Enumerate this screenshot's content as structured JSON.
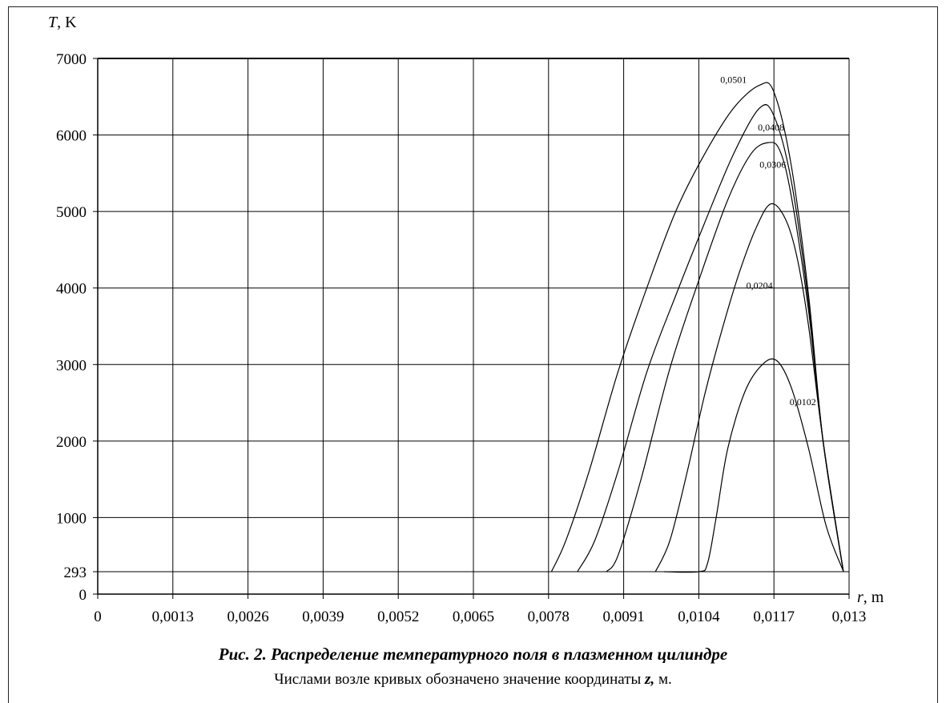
{
  "chart_data": {
    "type": "line",
    "y_axis_label": "T",
    "y_axis_unit": ", K",
    "x_axis_label": "r",
    "x_axis_unit": ", m",
    "xlim": [
      0,
      0.013
    ],
    "ylim": [
      0,
      7000
    ],
    "x_ticks": [
      "0",
      "0,0013",
      "0,0026",
      "0,0039",
      "0,0052",
      "0,0065",
      "0,0078",
      "0,0091",
      "0,0104",
      "0,0117",
      "0,013"
    ],
    "y_ticks": [
      "0",
      "293",
      "1000",
      "2000",
      "3000",
      "4000",
      "5000",
      "6000",
      "7000"
    ],
    "x_tick_values": [
      0,
      0.0013,
      0.0026,
      0.0039,
      0.0052,
      0.0065,
      0.0078,
      0.0091,
      0.0104,
      0.0117,
      0.013
    ],
    "y_tick_values": [
      0,
      293,
      1000,
      2000,
      3000,
      4000,
      5000,
      6000,
      7000
    ],
    "grid": true,
    "baseline": 293,
    "series": [
      {
        "name": "0,0501",
        "label_value": [
          0.011,
          6680
        ],
        "points": [
          [
            0.00785,
            293
          ],
          [
            0.0081,
            700
          ],
          [
            0.0085,
            1600
          ],
          [
            0.009,
            2900
          ],
          [
            0.0095,
            4000
          ],
          [
            0.01,
            5000
          ],
          [
            0.0105,
            5750
          ],
          [
            0.011,
            6350
          ],
          [
            0.01145,
            6650
          ],
          [
            0.0117,
            6560
          ],
          [
            0.012,
            5600
          ],
          [
            0.0123,
            3900
          ],
          [
            0.01255,
            2000
          ],
          [
            0.0129,
            300
          ]
        ]
      },
      {
        "name": "0,0408",
        "label_value": [
          0.01165,
          6060
        ],
        "points": [
          [
            0.0083,
            293
          ],
          [
            0.0086,
            700
          ],
          [
            0.009,
            1600
          ],
          [
            0.0095,
            2900
          ],
          [
            0.01,
            3900
          ],
          [
            0.0105,
            4850
          ],
          [
            0.011,
            5750
          ],
          [
            0.01145,
            6350
          ],
          [
            0.0117,
            6250
          ],
          [
            0.012,
            5400
          ],
          [
            0.0123,
            3800
          ],
          [
            0.01255,
            2000
          ],
          [
            0.0129,
            300
          ]
        ]
      },
      {
        "name": "0,0306",
        "label_value": [
          0.01168,
          5570
        ],
        "points": [
          [
            0.0088,
            293
          ],
          [
            0.009,
            500
          ],
          [
            0.0094,
            1500
          ],
          [
            0.0099,
            2950
          ],
          [
            0.0104,
            4100
          ],
          [
            0.0109,
            5150
          ],
          [
            0.0113,
            5750
          ],
          [
            0.0116,
            5900
          ],
          [
            0.0118,
            5800
          ],
          [
            0.012,
            5200
          ],
          [
            0.0123,
            3700
          ],
          [
            0.01255,
            2000
          ],
          [
            0.0129,
            300
          ]
        ]
      },
      {
        "name": "0,0204",
        "label_value": [
          0.01145,
          3990
        ],
        "points": [
          [
            0.00965,
            293
          ],
          [
            0.0099,
            700
          ],
          [
            0.0102,
            1600
          ],
          [
            0.0105,
            2600
          ],
          [
            0.0108,
            3450
          ],
          [
            0.0111,
            4200
          ],
          [
            0.0114,
            4800
          ],
          [
            0.01165,
            5100
          ],
          [
            0.0119,
            4900
          ],
          [
            0.0121,
            4400
          ],
          [
            0.0123,
            3500
          ],
          [
            0.01255,
            2000
          ],
          [
            0.0129,
            300
          ]
        ]
      },
      {
        "name": "0,0102",
        "label_value": [
          0.0122,
          2470
        ],
        "points": [
          [
            0.0098,
            293
          ],
          [
            0.0104,
            293
          ],
          [
            0.01055,
            400
          ],
          [
            0.0107,
            1000
          ],
          [
            0.0109,
            1900
          ],
          [
            0.0112,
            2650
          ],
          [
            0.0115,
            3000
          ],
          [
            0.01175,
            3050
          ],
          [
            0.012,
            2700
          ],
          [
            0.0123,
            1900
          ],
          [
            0.0126,
            900
          ],
          [
            0.0129,
            300
          ]
        ]
      }
    ]
  },
  "caption": {
    "title": "Рис. 2. Распределение температурного поля в плазменном цилиндре",
    "note_prefix": "Числами возле кривых обозначено значение координаты ",
    "note_var": "z,",
    "note_suffix": " м."
  }
}
